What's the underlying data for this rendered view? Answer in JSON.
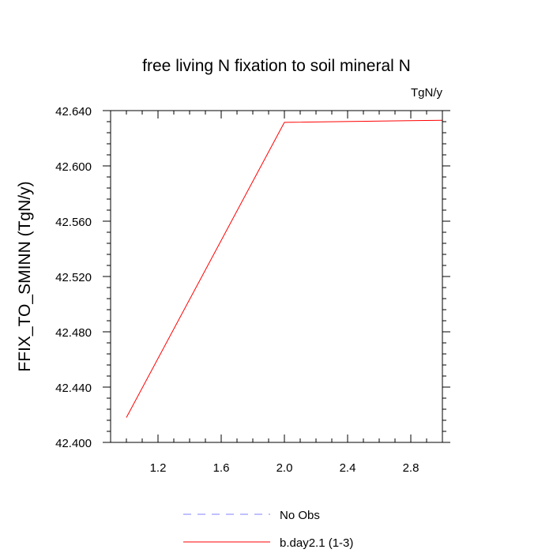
{
  "chart_data": {
    "type": "line",
    "title": "free living N fixation to soil mineral N",
    "units_label": "TgN/y",
    "xlabel": "",
    "ylabel": "FFIX_TO_SMINN  (TgN/y)",
    "xlim": [
      0.9,
      3.0
    ],
    "ylim": [
      42.4,
      42.64
    ],
    "x_ticks": [
      1.2,
      1.6,
      2.0,
      2.4,
      2.8
    ],
    "x_tick_labels": [
      "1.2",
      "1.6",
      "2.0",
      "2.4",
      "2.8"
    ],
    "y_ticks": [
      42.4,
      42.44,
      42.48,
      42.52,
      42.56,
      42.6,
      42.64
    ],
    "y_tick_labels": [
      "42.400",
      "42.440",
      "42.480",
      "42.520",
      "42.560",
      "42.600",
      "42.640"
    ],
    "grid": false,
    "legend_position": "bottom",
    "series": [
      {
        "name": "No Obs",
        "color": "#8080ff",
        "dash": "dashed",
        "x": [],
        "y": []
      },
      {
        "name": "b.day2.1 (1-3)",
        "color": "#ff0000",
        "dash": "solid",
        "x": [
          1,
          2,
          3
        ],
        "y": [
          42.418,
          42.6315,
          42.633
        ]
      }
    ]
  }
}
